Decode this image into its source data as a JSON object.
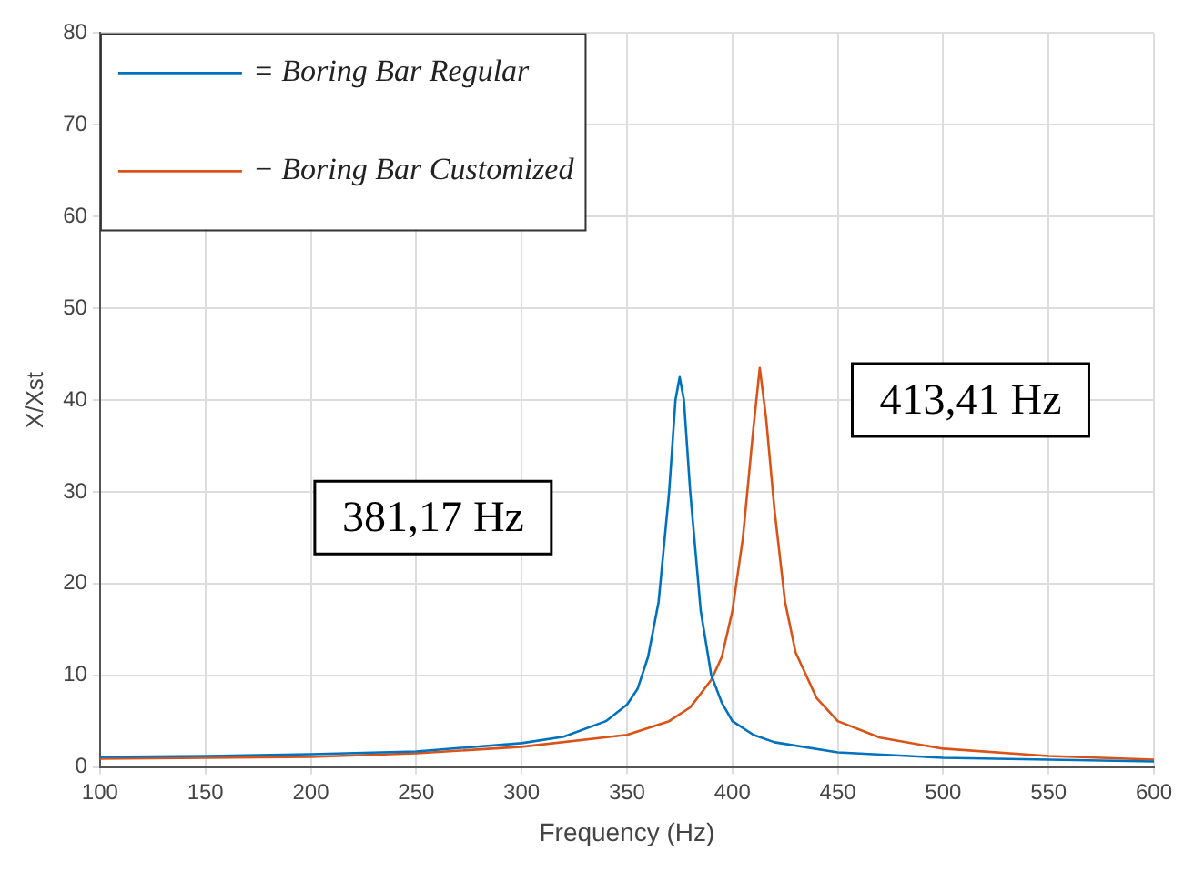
{
  "chart_data": {
    "type": "line",
    "xlabel": "Frequency (Hz)",
    "ylabel": "X/Xst",
    "xlim": [
      100,
      600
    ],
    "xticks": [
      100,
      150,
      200,
      250,
      300,
      350,
      400,
      450,
      500,
      550,
      600
    ],
    "ylim": [
      0,
      80
    ],
    "yticks": [
      0,
      10,
      20,
      30,
      40,
      50,
      60,
      70,
      80
    ],
    "grid": true,
    "legend": "top left",
    "marker": "none",
    "line_style": "solid",
    "series": [
      {
        "name": "= Boring Bar Regular",
        "color": "#0072bd",
        "x": [
          100,
          150,
          200,
          250,
          300,
          320,
          340,
          350,
          355,
          360,
          365,
          370,
          373,
          375,
          377,
          380,
          385,
          390,
          395,
          400,
          410,
          420,
          450,
          500,
          550,
          600
        ],
        "values": [
          1.1,
          1.2,
          1.4,
          1.7,
          2.6,
          3.3,
          5,
          6.8,
          8.5,
          12,
          18,
          30,
          40,
          42.5,
          40,
          30,
          17,
          10,
          7,
          5,
          3.5,
          2.7,
          1.6,
          1.0,
          0.8,
          0.6
        ]
      },
      {
        "name": "− Boring Bar Customized",
        "color": "#d95319",
        "x": [
          100,
          200,
          250,
          300,
          350,
          370,
          380,
          390,
          395,
          400,
          405,
          410,
          413,
          416,
          420,
          425,
          430,
          440,
          450,
          470,
          500,
          550,
          600
        ],
        "values": [
          0.9,
          1.1,
          1.5,
          2.2,
          3.5,
          5,
          6.5,
          9.5,
          12,
          17,
          25,
          37,
          43.5,
          38,
          28,
          18,
          12.5,
          7.5,
          5,
          3.2,
          2.0,
          1.2,
          0.8
        ]
      }
    ],
    "annotations": [
      "381,17 Hz",
      "413,41 Hz"
    ]
  }
}
